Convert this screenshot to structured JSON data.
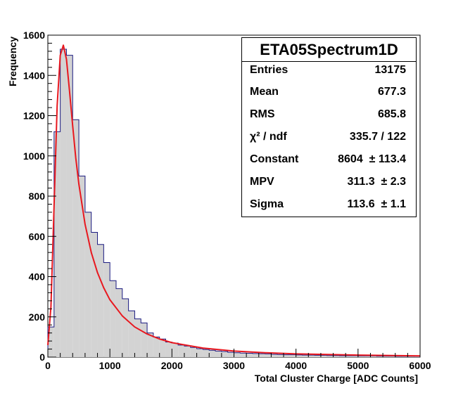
{
  "chart_data": {
    "type": "histogram",
    "title": "",
    "xlabel": "Total Cluster Charge [ADC Counts]",
    "ylabel": "Frequency",
    "xlim": [
      0,
      6000
    ],
    "ylim": [
      0,
      1600
    ],
    "x_ticks": [
      0,
      1000,
      2000,
      3000,
      4000,
      5000,
      6000
    ],
    "y_ticks": [
      0,
      200,
      400,
      600,
      800,
      1000,
      1200,
      1400,
      1600
    ],
    "grid": false,
    "bin_width": 100,
    "bin_starts": [
      0,
      100,
      200,
      300,
      400,
      500,
      600,
      700,
      800,
      900,
      1000,
      1100,
      1200,
      1300,
      1400,
      1500,
      1600,
      1700,
      1800,
      1900,
      2000,
      2100,
      2200,
      2300,
      2400,
      2500,
      2600,
      2700,
      2800,
      2900,
      3000,
      3100,
      3200,
      3300,
      3400,
      3500,
      3600,
      3700,
      3800,
      3900,
      4000,
      4100,
      4200,
      4300,
      4400,
      4500,
      4600,
      4700,
      4800,
      4900,
      5000,
      5100,
      5200,
      5300,
      5400,
      5500,
      5600,
      5700,
      5800,
      5900
    ],
    "series": [
      {
        "kind": "histogram",
        "fill": "#d3d3d3",
        "line": "#1a1a80",
        "values": [
          150,
          1120,
          1530,
          1500,
          1180,
          900,
          720,
          620,
          560,
          470,
          380,
          340,
          290,
          230,
          190,
          170,
          120,
          100,
          90,
          75,
          70,
          60,
          55,
          48,
          42,
          38,
          34,
          30,
          28,
          24,
          22,
          20,
          19,
          18,
          17,
          16,
          14,
          13,
          12,
          12,
          11,
          10,
          10,
          9,
          9,
          8,
          8,
          7,
          7,
          7,
          6,
          6,
          6,
          5,
          5,
          5,
          4,
          4,
          4,
          4
        ]
      },
      {
        "kind": "landau-fit",
        "color": "#e8181f",
        "x": [
          0,
          50,
          100,
          150,
          200,
          250,
          300,
          350,
          400,
          450,
          500,
          600,
          700,
          800,
          900,
          1000,
          1200,
          1400,
          1600,
          1800,
          2000,
          2500,
          3000,
          3500,
          4000,
          5000,
          6000
        ],
        "values": [
          60,
          250,
          750,
          1250,
          1500,
          1550,
          1480,
          1320,
          1150,
          990,
          860,
          660,
          520,
          420,
          345,
          285,
          205,
          150,
          115,
          90,
          72,
          45,
          30,
          22,
          16,
          10,
          6
        ]
      }
    ],
    "stats_box": {
      "title": "ETA05Spectrum1D",
      "rows": [
        {
          "label": "Entries",
          "value": "13175"
        },
        {
          "label": "Mean",
          "value": "677.3"
        },
        {
          "label": "RMS",
          "value": "685.8"
        },
        {
          "label": "χ² / ndf",
          "value": "335.7 / 122"
        },
        {
          "label": "Constant",
          "value": "8604  ± 113.4"
        },
        {
          "label": "MPV",
          "value": "311.3  ± 2.3"
        },
        {
          "label": "Sigma",
          "value": "113.6  ± 1.1"
        }
      ]
    }
  }
}
